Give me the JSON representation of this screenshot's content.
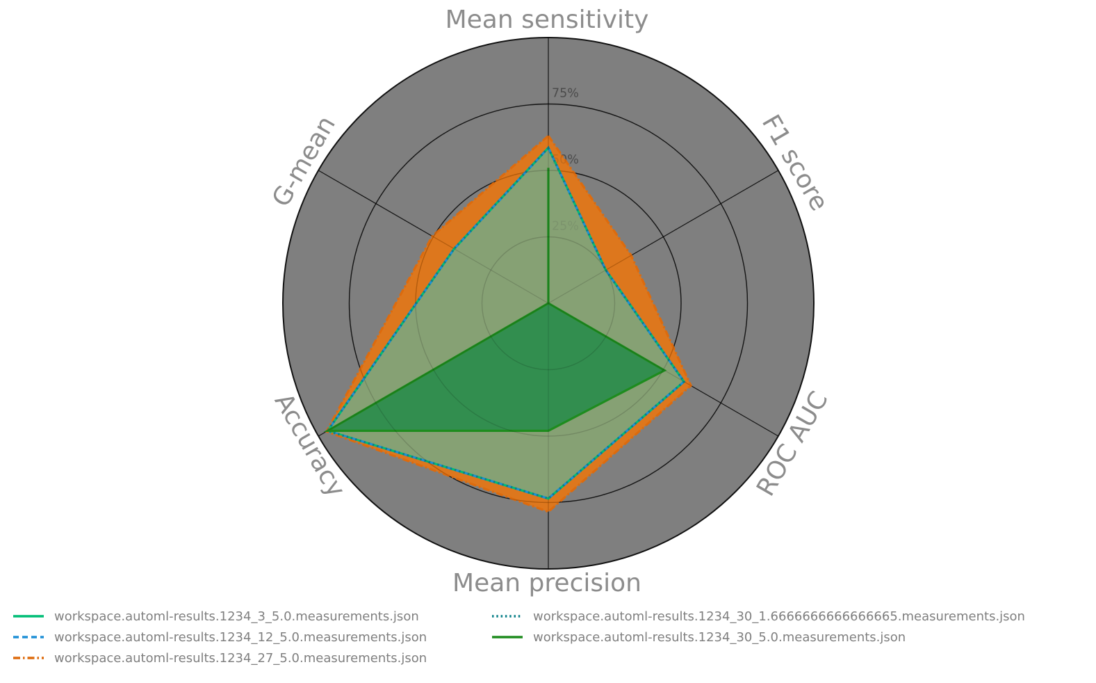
{
  "chart_data": {
    "type": "radar",
    "axes": [
      "Mean sensitivity",
      "F1 score",
      "ROC AUC",
      "Mean precision",
      "Accuracy",
      "G-mean"
    ],
    "rticks": [
      "25%",
      "50%",
      "75%"
    ],
    "rlim": [
      0,
      100
    ],
    "grid": true,
    "legend_position": "bottom",
    "background_circle_color": "#7f7f7f",
    "grid_color": "#000000",
    "axis_label_color": "#8c8c8c",
    "tick_label_color": "#454545",
    "legend_text_color": "#7f7f7f",
    "series": [
      {
        "name": "workspace.automl-results.1234_3_5.0.measurements.json",
        "color": "#00BE76",
        "style": "solid",
        "fill": "#7CA57E",
        "fill_opacity": 0.9,
        "values": [
          58.5,
          25,
          59,
          73.5,
          96,
          41
        ]
      },
      {
        "name": "workspace.automl-results.1234_12_5.0.measurements.json",
        "color": "#1E8FD6",
        "style": "dashed",
        "fill": "none",
        "fill_opacity": 0,
        "values": [
          58.5,
          25,
          59,
          73.5,
          96,
          41
        ]
      },
      {
        "name": "workspace.automl-results.1234_27_5.0.measurements.json",
        "color": "#DD6B0D",
        "style": "dashdot",
        "fill": "#EC760F",
        "fill_opacity": 0.87,
        "values": [
          63,
          36,
          62,
          78.5,
          96.5,
          50.5
        ]
      },
      {
        "name": "workspace.automl-results.1234_30_1.6666666666666665.measurements.json",
        "color": "#0B8089",
        "style": "dotted",
        "fill": "none",
        "fill_opacity": 0,
        "values": [
          58.5,
          25,
          59,
          73.5,
          96,
          41
        ]
      },
      {
        "name": "workspace.automl-results.1234_30_5.0.measurements.json",
        "color": "#1E8C1E",
        "style": "solid",
        "fill": "#298C4B",
        "fill_opacity": 0.9,
        "values": [
          51,
          0,
          50.5,
          48,
          96,
          0
        ]
      }
    ]
  }
}
